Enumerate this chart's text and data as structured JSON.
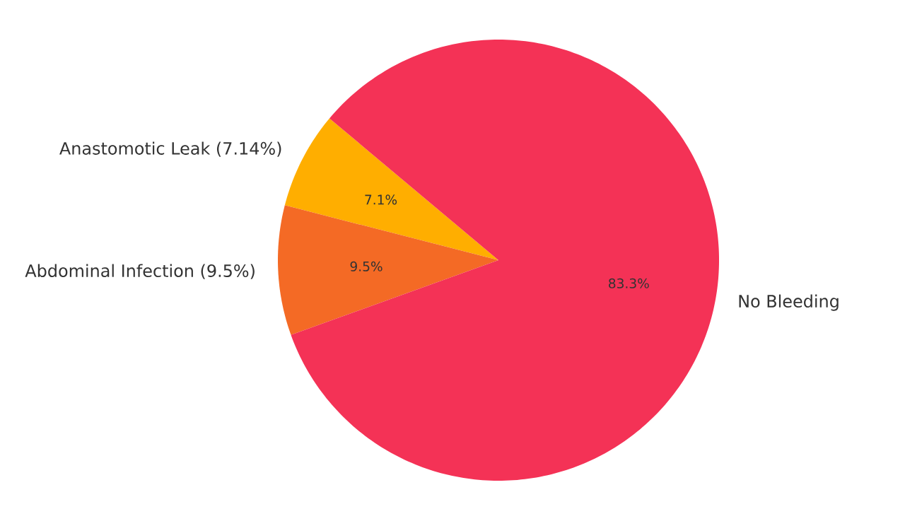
{
  "chart_data": {
    "type": "pie",
    "categories": [
      "Anastomotic Leak (7.14%)",
      "Abdominal Infection (9.5%)",
      "No Bleeding"
    ],
    "values": [
      7.1,
      9.5,
      83.3
    ],
    "colors": [
      "#ffae00",
      "#f46a25",
      "#f43256"
    ],
    "value_labels": [
      "7.1%",
      "9.5%",
      "83.3%"
    ]
  }
}
